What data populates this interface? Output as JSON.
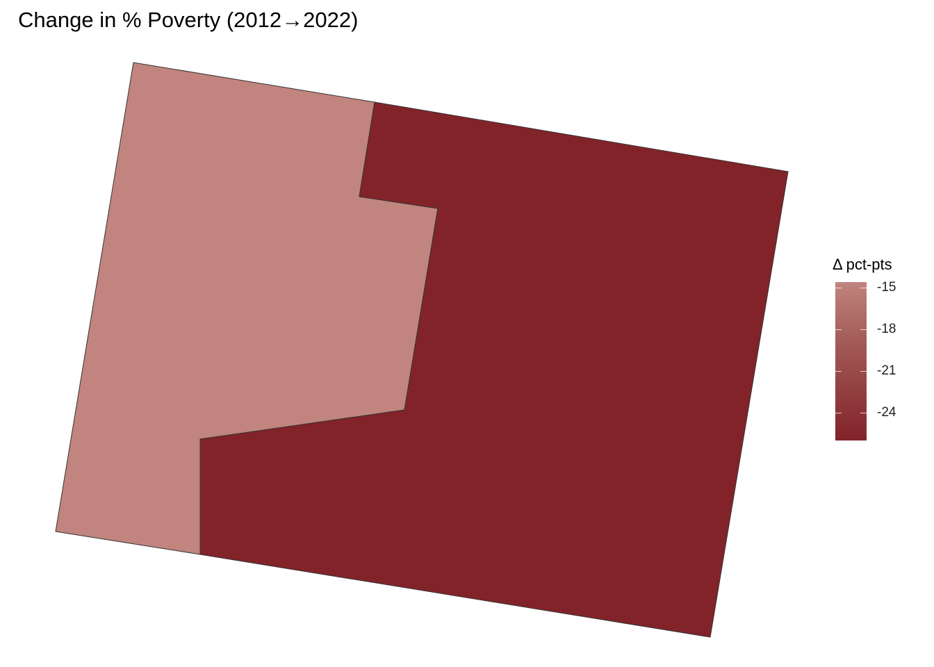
{
  "title": "Change in % Poverty (2012→2022)",
  "chart_data": {
    "type": "choropleth",
    "regions": [
      {
        "name": "",
        "value": -15.5,
        "fill": "#c1847e"
      },
      {
        "name": "",
        "value": -26.0,
        "fill": "#82232a"
      }
    ],
    "legend": {
      "title": "Δ pct-pts",
      "ticks": [
        {
          "label": "-15",
          "value": -15
        },
        {
          "label": "-18",
          "value": -18
        },
        {
          "label": "-21",
          "value": -21
        },
        {
          "label": "-24",
          "value": -24
        }
      ],
      "range": [
        -26.0,
        -14.6
      ],
      "low_color": "#82232a",
      "high_color": "#c1847e",
      "placement": "right"
    }
  }
}
